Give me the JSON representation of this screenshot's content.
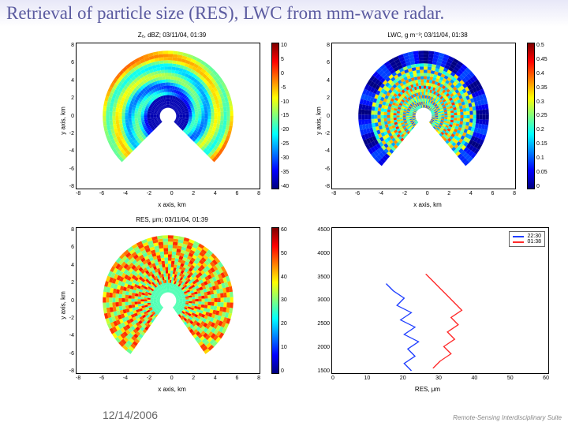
{
  "title": "Retrieval of particle size (RES), LWC from mm-wave radar.",
  "title_color": "#5b5ba0",
  "title_fontsize": 23,
  "footer": {
    "date": "12/14/2006",
    "logo": "Remote-Sensing Interdisciplinary Suite"
  },
  "jet_stops": [
    "#00007f",
    "#0000ff",
    "#007fff",
    "#00ffff",
    "#7fff7f",
    "#ffff00",
    "#ff7f00",
    "#ff0000",
    "#7f0000"
  ],
  "panels": {
    "tl": {
      "type": "polar-sector-heatmap",
      "title": "Zₑ, dBZ; 03/11/04, 01:39",
      "xlabel": "x axis, km",
      "ylabel": "y axis, km",
      "xlim": [
        -8,
        8
      ],
      "ylim": [
        -8,
        8
      ],
      "xticks": [
        -8,
        -6,
        -4,
        -2,
        0,
        2,
        4,
        6,
        8
      ],
      "yticks": [
        8,
        6,
        4,
        2,
        0,
        -2,
        -4,
        -6,
        -8
      ],
      "colorbar": {
        "min": -40,
        "max": 10,
        "ticks": [
          10,
          5,
          0,
          -5,
          -10,
          -15,
          -20,
          -25,
          -30,
          -35,
          -40
        ]
      },
      "sector": {
        "r_inner_km": 1,
        "r_outer_km": 8,
        "angle_deg": [
          -135,
          135
        ]
      }
    },
    "tr": {
      "type": "polar-sector-heatmap",
      "title": "LWC, g m⁻³; 03/11/04, 01:38",
      "xlabel": "x axis, km",
      "ylabel": "y axis, km",
      "xlim": [
        -8,
        8
      ],
      "ylim": [
        -8,
        8
      ],
      "xticks": [
        -8,
        -6,
        -4,
        -2,
        0,
        2,
        4,
        6,
        8
      ],
      "yticks": [
        8,
        6,
        4,
        2,
        0,
        -2,
        -4,
        -6,
        -8
      ],
      "colorbar": {
        "min": 0,
        "max": 0.5,
        "ticks": [
          0.5,
          0.45,
          0.4,
          0.35,
          0.3,
          0.25,
          0.2,
          0.15,
          0.1,
          0.05,
          0
        ]
      },
      "sector": {
        "r_inner_km": 1,
        "r_outer_km": 8,
        "angle_deg": [
          -140,
          140
        ]
      }
    },
    "bl": {
      "type": "polar-sector-heatmap",
      "title": "RES, μm; 03/11/04, 01:39",
      "xlabel": "x axis, km",
      "ylabel": "y axis, km",
      "xlim": [
        -8,
        8
      ],
      "ylim": [
        -8,
        8
      ],
      "xticks": [
        -8,
        -6,
        -4,
        -2,
        0,
        2,
        4,
        6,
        8
      ],
      "yticks": [
        8,
        6,
        4,
        2,
        0,
        -2,
        -4,
        -6,
        -8
      ],
      "colorbar": {
        "min": 0,
        "max": 60,
        "ticks": [
          60,
          50,
          40,
          30,
          20,
          10,
          0
        ]
      },
      "sector": {
        "r_inner_km": 1,
        "r_outer_km": 8,
        "angle_deg": [
          -145,
          145
        ]
      }
    },
    "br": {
      "type": "line",
      "xlabel": "RES, μm",
      "ylabel": "",
      "xlim": [
        0,
        60
      ],
      "ylim": [
        1500,
        4500
      ],
      "xticks": [
        0,
        10,
        20,
        30,
        40,
        50,
        60
      ],
      "yticks": [
        4500,
        4000,
        3500,
        3000,
        2500,
        2000,
        1500
      ],
      "legend": [
        {
          "label": "22:30",
          "color": "#1f3fff"
        },
        {
          "label": "01:38",
          "color": "#ff2a2a"
        }
      ],
      "series": [
        {
          "name": "22:30",
          "color": "#1f3fff",
          "points": [
            [
              22,
              1550
            ],
            [
              20,
              1700
            ],
            [
              23,
              1850
            ],
            [
              21,
              2000
            ],
            [
              24,
              2150
            ],
            [
              20,
              2300
            ],
            [
              23,
              2450
            ],
            [
              19,
              2600
            ],
            [
              22,
              2750
            ],
            [
              18,
              2900
            ],
            [
              20,
              3050
            ],
            [
              17,
              3200
            ],
            [
              15,
              3350
            ]
          ]
        },
        {
          "name": "01:38",
          "color": "#ff2a2a",
          "points": [
            [
              28,
              1600
            ],
            [
              30,
              1750
            ],
            [
              33,
              1900
            ],
            [
              31,
              2050
            ],
            [
              34,
              2200
            ],
            [
              32,
              2350
            ],
            [
              35,
              2500
            ],
            [
              33,
              2650
            ],
            [
              36,
              2800
            ],
            [
              34,
              2950
            ],
            [
              32,
              3100
            ],
            [
              30,
              3250
            ],
            [
              28,
              3400
            ],
            [
              26,
              3550
            ]
          ]
        }
      ]
    }
  }
}
